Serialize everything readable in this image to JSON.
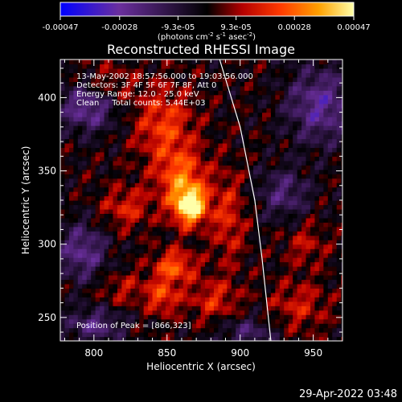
{
  "chart_data": {
    "type": "heatmap",
    "title": "Reconstructed RHESSI Image",
    "xlabel": "Heliocentric X (arcsec)",
    "ylabel": "Heliocentric Y (arcsec)",
    "xlim": [
      777,
      970
    ],
    "ylim": [
      234,
      426
    ],
    "x_ticks": [
      "800",
      "850",
      "900",
      "950"
    ],
    "x_tick_values": [
      800,
      850,
      900,
      950
    ],
    "y_ticks": [
      "250",
      "300",
      "350",
      "400"
    ],
    "y_tick_values": [
      250,
      300,
      350,
      400
    ],
    "colorbar": {
      "colormap": [
        "#0000ff",
        "#6b2f9e",
        "#000000",
        "#b40000",
        "#ff3a00",
        "#ffa000",
        "#ffffa8"
      ],
      "ticks": [
        "-0.00047",
        "-0.00028",
        "-9.3e-05",
        "9.3e-05",
        "0.00028",
        "0.00047"
      ],
      "tick_values": [
        -0.00047,
        -0.00028,
        -9.3e-05,
        9.3e-05,
        0.00028,
        0.00047
      ],
      "unit_label": "(photons cm",
      "unit_sup1": "-2",
      "unit_mid": " s",
      "unit_sup2": "-1",
      "unit_mid2": " asec",
      "unit_sup3": "-2",
      "unit_end": ")"
    },
    "annotations": [
      "13-May-2002 18:57:56.000 to 19:03:56.000",
      "Detectors: 3F 4F 5F 6F 7F 8F, Att 0",
      "Energy Range: 12.0 - 25.0 keV",
      "Clean     Total counts: 5.44E+03"
    ],
    "peak_label": "Position of Peak = [866,323]",
    "peak": [
      866,
      323
    ],
    "limb_curve": [
      [
        886,
        426
      ],
      [
        900,
        380
      ],
      [
        910,
        330
      ],
      [
        915,
        290
      ],
      [
        921,
        234
      ]
    ],
    "sources": [
      {
        "x": 866,
        "y": 326,
        "sx": 8,
        "sy": 9,
        "amp": 1.0
      },
      {
        "x": 860,
        "y": 345,
        "sx": 12,
        "sy": 14,
        "amp": 0.55
      },
      {
        "x": 848,
        "y": 382,
        "sx": 14,
        "sy": 18,
        "amp": 0.45
      },
      {
        "x": 855,
        "y": 285,
        "sx": 10,
        "sy": 8,
        "amp": 0.55
      },
      {
        "x": 847,
        "y": 264,
        "sx": 8,
        "sy": 8,
        "amp": 0.45
      },
      {
        "x": 882,
        "y": 262,
        "sx": 12,
        "sy": 10,
        "amp": 0.35
      },
      {
        "x": 822,
        "y": 325,
        "sx": 12,
        "sy": 10,
        "amp": 0.35
      },
      {
        "x": 808,
        "y": 408,
        "sx": 14,
        "sy": 10,
        "amp": 0.3
      },
      {
        "x": 892,
        "y": 318,
        "sx": 8,
        "sy": 22,
        "amp": 0.35
      },
      {
        "x": 940,
        "y": 258,
        "sx": 14,
        "sy": 12,
        "amp": 0.3
      },
      {
        "x": 945,
        "y": 300,
        "sx": 10,
        "sy": 10,
        "amp": 0.25
      },
      {
        "x": 820,
        "y": 270,
        "sx": 12,
        "sy": 8,
        "amp": 0.25
      }
    ],
    "negative_regions": [
      {
        "x": 796,
        "y": 395,
        "sx": 14,
        "sy": 12,
        "amp": 0.6
      },
      {
        "x": 792,
        "y": 295,
        "sx": 12,
        "sy": 14,
        "amp": 0.5
      },
      {
        "x": 955,
        "y": 395,
        "sx": 16,
        "sy": 18,
        "amp": 0.55
      },
      {
        "x": 930,
        "y": 335,
        "sx": 12,
        "sy": 12,
        "amp": 0.4
      },
      {
        "x": 800,
        "y": 245,
        "sx": 14,
        "sy": 8,
        "amp": 0.45
      },
      {
        "x": 905,
        "y": 240,
        "sx": 14,
        "sy": 8,
        "amp": 0.35
      }
    ]
  },
  "footer": {
    "timestamp": "29-Apr-2022 03:48"
  }
}
